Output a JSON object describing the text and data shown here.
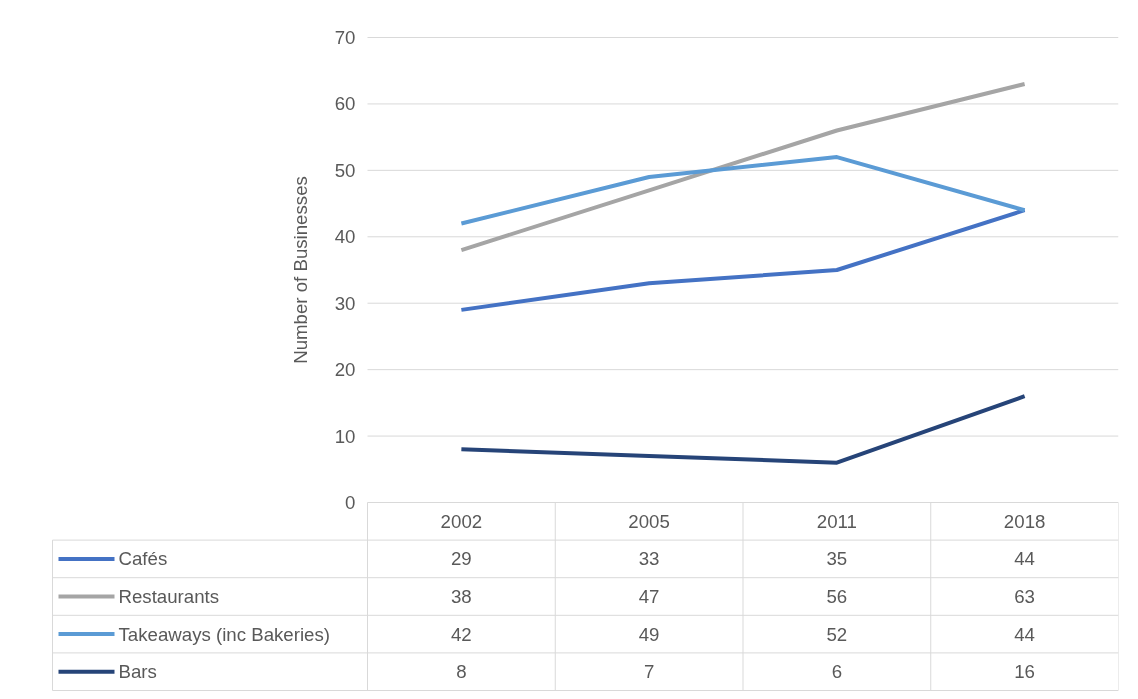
{
  "chart_data": {
    "type": "line",
    "ylabel": "Number of Businesses",
    "categories": [
      "2002",
      "2005",
      "2011",
      "2018"
    ],
    "series": [
      {
        "name": "Cafés",
        "color": "#4472c4",
        "values": [
          29,
          33,
          35,
          44
        ]
      },
      {
        "name": "Restaurants",
        "color": "#a5a5a5",
        "values": [
          38,
          47,
          56,
          63
        ]
      },
      {
        "name": "Takeaways (inc Bakeries)",
        "color": "#5b9bd5",
        "values": [
          42,
          49,
          52,
          44
        ]
      },
      {
        "name": "Bars",
        "color": "#264478",
        "values": [
          8,
          7,
          6,
          16
        ]
      }
    ],
    "ylim": [
      0,
      70
    ],
    "yticks": [
      0,
      10,
      20,
      30,
      40,
      50,
      60,
      70
    ],
    "grid": "y",
    "legend": "bottom",
    "data_labels": true,
    "marker": "none",
    "line_style": "solid"
  }
}
